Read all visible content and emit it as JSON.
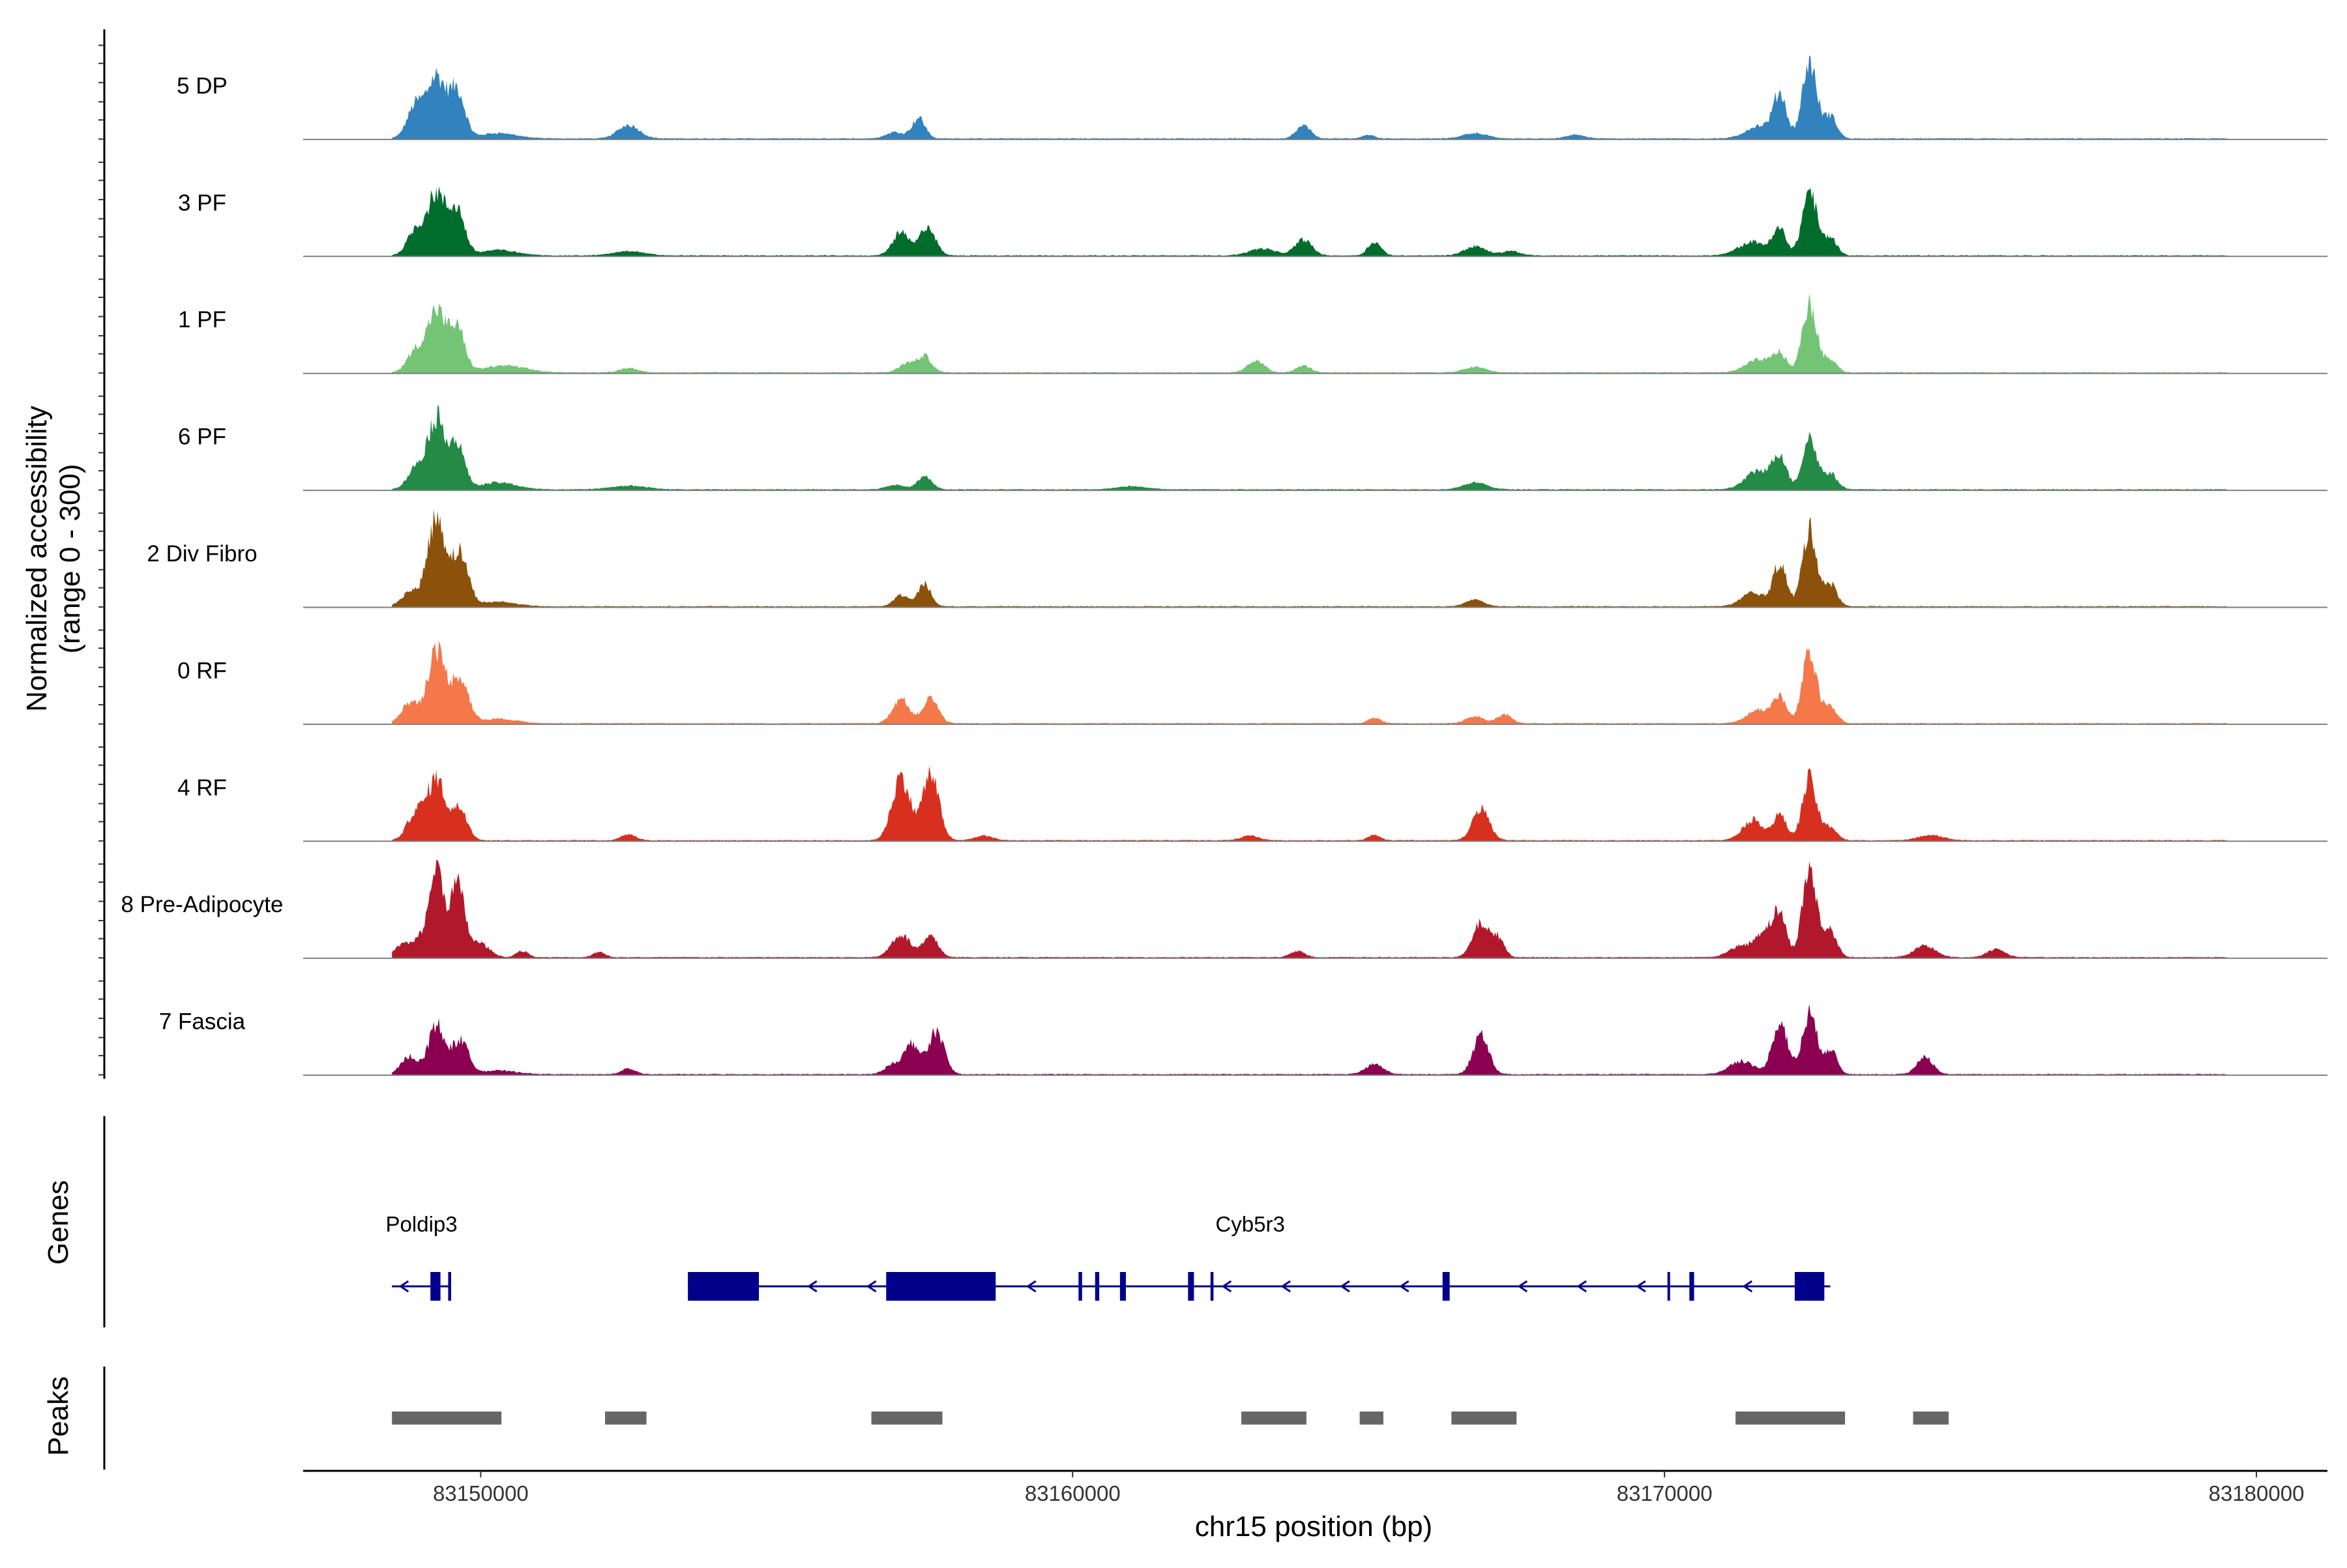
{
  "chart_data": {
    "type": "area",
    "region": {
      "chrom": "chr15",
      "start": 83147000,
      "end": 83181200
    },
    "ylabel_line1": "Normalized accessibility",
    "ylabel_line2": "(range 0 - 300)",
    "ylim": [
      0,
      300
    ],
    "xlabel": "chr15 position (bp)",
    "xticks": [
      83150000,
      83160000,
      83170000,
      83180000
    ],
    "xtick_labels": [
      "83150000",
      "83160000",
      "83170000",
      "83180000"
    ],
    "genes_label": "Genes",
    "peaks_label": "Peaks",
    "signal_start": 83148500,
    "signal_end": 83179500,
    "tracks": [
      {
        "name": "5 DP",
        "color": "#3182BD",
        "peaks": [
          [
            83148900,
            72,
            140
          ],
          [
            83149250,
            135,
            150
          ],
          [
            83149600,
            105,
            130
          ],
          [
            83150300,
            12,
            300
          ],
          [
            83152500,
            30,
            180
          ],
          [
            83157000,
            14,
            150
          ],
          [
            83157400,
            45,
            110
          ],
          [
            83163900,
            28,
            120
          ],
          [
            83165000,
            8,
            100
          ],
          [
            83166800,
            12,
            200
          ],
          [
            83168500,
            8,
            150
          ],
          [
            83171600,
            28,
            220
          ],
          [
            83171950,
            95,
            110
          ],
          [
            83172450,
            170,
            120
          ],
          [
            83172800,
            50,
            110
          ]
        ]
      },
      {
        "name": "3 PF",
        "color": "#006D2C",
        "peaks": [
          [
            83148900,
            55,
            140
          ],
          [
            83149250,
            135,
            150
          ],
          [
            83149600,
            100,
            130
          ],
          [
            83150300,
            12,
            300
          ],
          [
            83152500,
            10,
            250
          ],
          [
            83157100,
            50,
            140
          ],
          [
            83157550,
            65,
            130
          ],
          [
            83163200,
            15,
            220
          ],
          [
            83163900,
            35,
            140
          ],
          [
            83165100,
            30,
            110
          ],
          [
            83166800,
            20,
            180
          ],
          [
            83167400,
            10,
            150
          ],
          [
            83171500,
            30,
            240
          ],
          [
            83171950,
            55,
            110
          ],
          [
            83172450,
            145,
            120
          ],
          [
            83172800,
            40,
            110
          ]
        ]
      },
      {
        "name": "1 PF",
        "color": "#74C476",
        "peaks": [
          [
            83148900,
            48,
            140
          ],
          [
            83149250,
            135,
            150
          ],
          [
            83149600,
            95,
            130
          ],
          [
            83150400,
            15,
            350
          ],
          [
            83152500,
            10,
            150
          ],
          [
            83157200,
            20,
            130
          ],
          [
            83157500,
            35,
            120
          ],
          [
            83163100,
            25,
            140
          ],
          [
            83163900,
            15,
            120
          ],
          [
            83166800,
            12,
            180
          ],
          [
            83171600,
            28,
            220
          ],
          [
            83171950,
            38,
            110
          ],
          [
            83172450,
            150,
            120
          ],
          [
            83172800,
            30,
            110
          ]
        ]
      },
      {
        "name": "6 PF",
        "color": "#238B45",
        "peaks": [
          [
            83148900,
            45,
            140
          ],
          [
            83149250,
            155,
            150
          ],
          [
            83149600,
            95,
            130
          ],
          [
            83150300,
            15,
            300
          ],
          [
            83152500,
            8,
            300
          ],
          [
            83157000,
            10,
            150
          ],
          [
            83157500,
            28,
            120
          ],
          [
            83161000,
            7,
            250
          ],
          [
            83166800,
            15,
            200
          ],
          [
            83171600,
            42,
            220
          ],
          [
            83171950,
            70,
            110
          ],
          [
            83172450,
            115,
            120
          ],
          [
            83172800,
            35,
            120
          ]
        ]
      },
      {
        "name": "2 Div Fibro",
        "color": "#8C510A",
        "peaks": [
          [
            83148800,
            32,
            140
          ],
          [
            83149250,
            195,
            150
          ],
          [
            83149650,
            115,
            140
          ],
          [
            83150300,
            10,
            300
          ],
          [
            83157100,
            25,
            120
          ],
          [
            83157500,
            50,
            110
          ],
          [
            83166800,
            15,
            150
          ],
          [
            83171500,
            30,
            200
          ],
          [
            83171950,
            95,
            110
          ],
          [
            83172450,
            170,
            120
          ],
          [
            83172800,
            50,
            110
          ]
        ]
      },
      {
        "name": "0 RF",
        "color": "#F4784A",
        "peaks": [
          [
            83148800,
            45,
            140
          ],
          [
            83149250,
            160,
            150
          ],
          [
            83149650,
            100,
            140
          ],
          [
            83150300,
            10,
            300
          ],
          [
            83157100,
            55,
            140
          ],
          [
            83157600,
            55,
            130
          ],
          [
            83165100,
            12,
            100
          ],
          [
            83166800,
            15,
            150
          ],
          [
            83167300,
            20,
            120
          ],
          [
            83171600,
            30,
            200
          ],
          [
            83171950,
            55,
            110
          ],
          [
            83172450,
            155,
            120
          ],
          [
            83172800,
            40,
            110
          ]
        ]
      },
      {
        "name": "4 RF",
        "color": "#D7301F",
        "peaks": [
          [
            83148900,
            60,
            140
          ],
          [
            83149250,
            135,
            150
          ],
          [
            83149650,
            70,
            130
          ],
          [
            83152500,
            14,
            120
          ],
          [
            83157100,
            140,
            150
          ],
          [
            83157600,
            145,
            140
          ],
          [
            83158500,
            10,
            150
          ],
          [
            83163000,
            10,
            150
          ],
          [
            83165100,
            12,
            100
          ],
          [
            83166900,
            70,
            140
          ],
          [
            83171500,
            45,
            180
          ],
          [
            83171950,
            55,
            110
          ],
          [
            83172450,
            135,
            120
          ],
          [
            83172800,
            30,
            110
          ],
          [
            83174500,
            12,
            200
          ]
        ]
      },
      {
        "name": "8 Pre-Adipocyte",
        "color": "#B2182B",
        "peaks": [
          [
            83148700,
            30,
            140
          ],
          [
            83149000,
            40,
            110
          ],
          [
            83149250,
            200,
            110
          ],
          [
            83149600,
            160,
            130
          ],
          [
            83150000,
            30,
            150
          ],
          [
            83150700,
            14,
            100
          ],
          [
            83152000,
            12,
            100
          ],
          [
            83157100,
            50,
            160
          ],
          [
            83157600,
            45,
            130
          ],
          [
            83163800,
            14,
            120
          ],
          [
            83166900,
            75,
            140
          ],
          [
            83167200,
            40,
            100
          ],
          [
            83171300,
            25,
            200
          ],
          [
            83171700,
            55,
            150
          ],
          [
            83171950,
            90,
            110
          ],
          [
            83172450,
            195,
            120
          ],
          [
            83172800,
            60,
            110
          ],
          [
            83174400,
            25,
            180
          ],
          [
            83175600,
            18,
            150
          ]
        ]
      },
      {
        "name": "7 Fascia",
        "color": "#8C0051",
        "peaks": [
          [
            83148800,
            40,
            140
          ],
          [
            83149250,
            110,
            130
          ],
          [
            83149650,
            75,
            140
          ],
          [
            83150300,
            8,
            300
          ],
          [
            83152500,
            12,
            120
          ],
          [
            83157000,
            25,
            150
          ],
          [
            83157300,
            65,
            120
          ],
          [
            83157700,
            95,
            130
          ],
          [
            83165100,
            22,
            150
          ],
          [
            83166900,
            90,
            130
          ],
          [
            83171300,
            30,
            200
          ],
          [
            83171950,
            115,
            130
          ],
          [
            83172450,
            135,
            120
          ],
          [
            83172800,
            55,
            110
          ],
          [
            83174400,
            40,
            130
          ]
        ]
      }
    ],
    "genes": [
      {
        "name": "Poldip3",
        "label_pos": 83149000,
        "strand": "-",
        "start": 83148500,
        "end": 83149500,
        "exons": [
          [
            83149150,
            83149320
          ],
          [
            83149450,
            83149500
          ]
        ],
        "arrows": [
          83148700
        ]
      },
      {
        "name": "Cyb5r3",
        "label_pos": 83163000,
        "strand": "-",
        "start": 83153500,
        "end": 83172800,
        "exons": [
          [
            83153500,
            83154700
          ],
          [
            83156850,
            83158700
          ],
          [
            83160100,
            83160160
          ],
          [
            83160380,
            83160450
          ],
          [
            83160800,
            83160900
          ],
          [
            83161950,
            83162050
          ],
          [
            83162330,
            83162380
          ],
          [
            83166250,
            83166370
          ],
          [
            83170050,
            83170080
          ],
          [
            83170420,
            83170500
          ],
          [
            83172200,
            83172700
          ]
        ],
        "arrows": [
          83155600,
          83156600,
          83159300,
          83162600,
          83163600,
          83164600,
          83165600,
          83167600,
          83168600,
          83169600,
          83171400
        ]
      }
    ],
    "peak_regions": [
      [
        83148500,
        83150350
      ],
      [
        83152100,
        83152800
      ],
      [
        83156600,
        83157800
      ],
      [
        83162850,
        83163950
      ],
      [
        83164850,
        83165250
      ],
      [
        83166400,
        83167500
      ],
      [
        83171200,
        83173050
      ],
      [
        83174200,
        83174800
      ]
    ]
  }
}
